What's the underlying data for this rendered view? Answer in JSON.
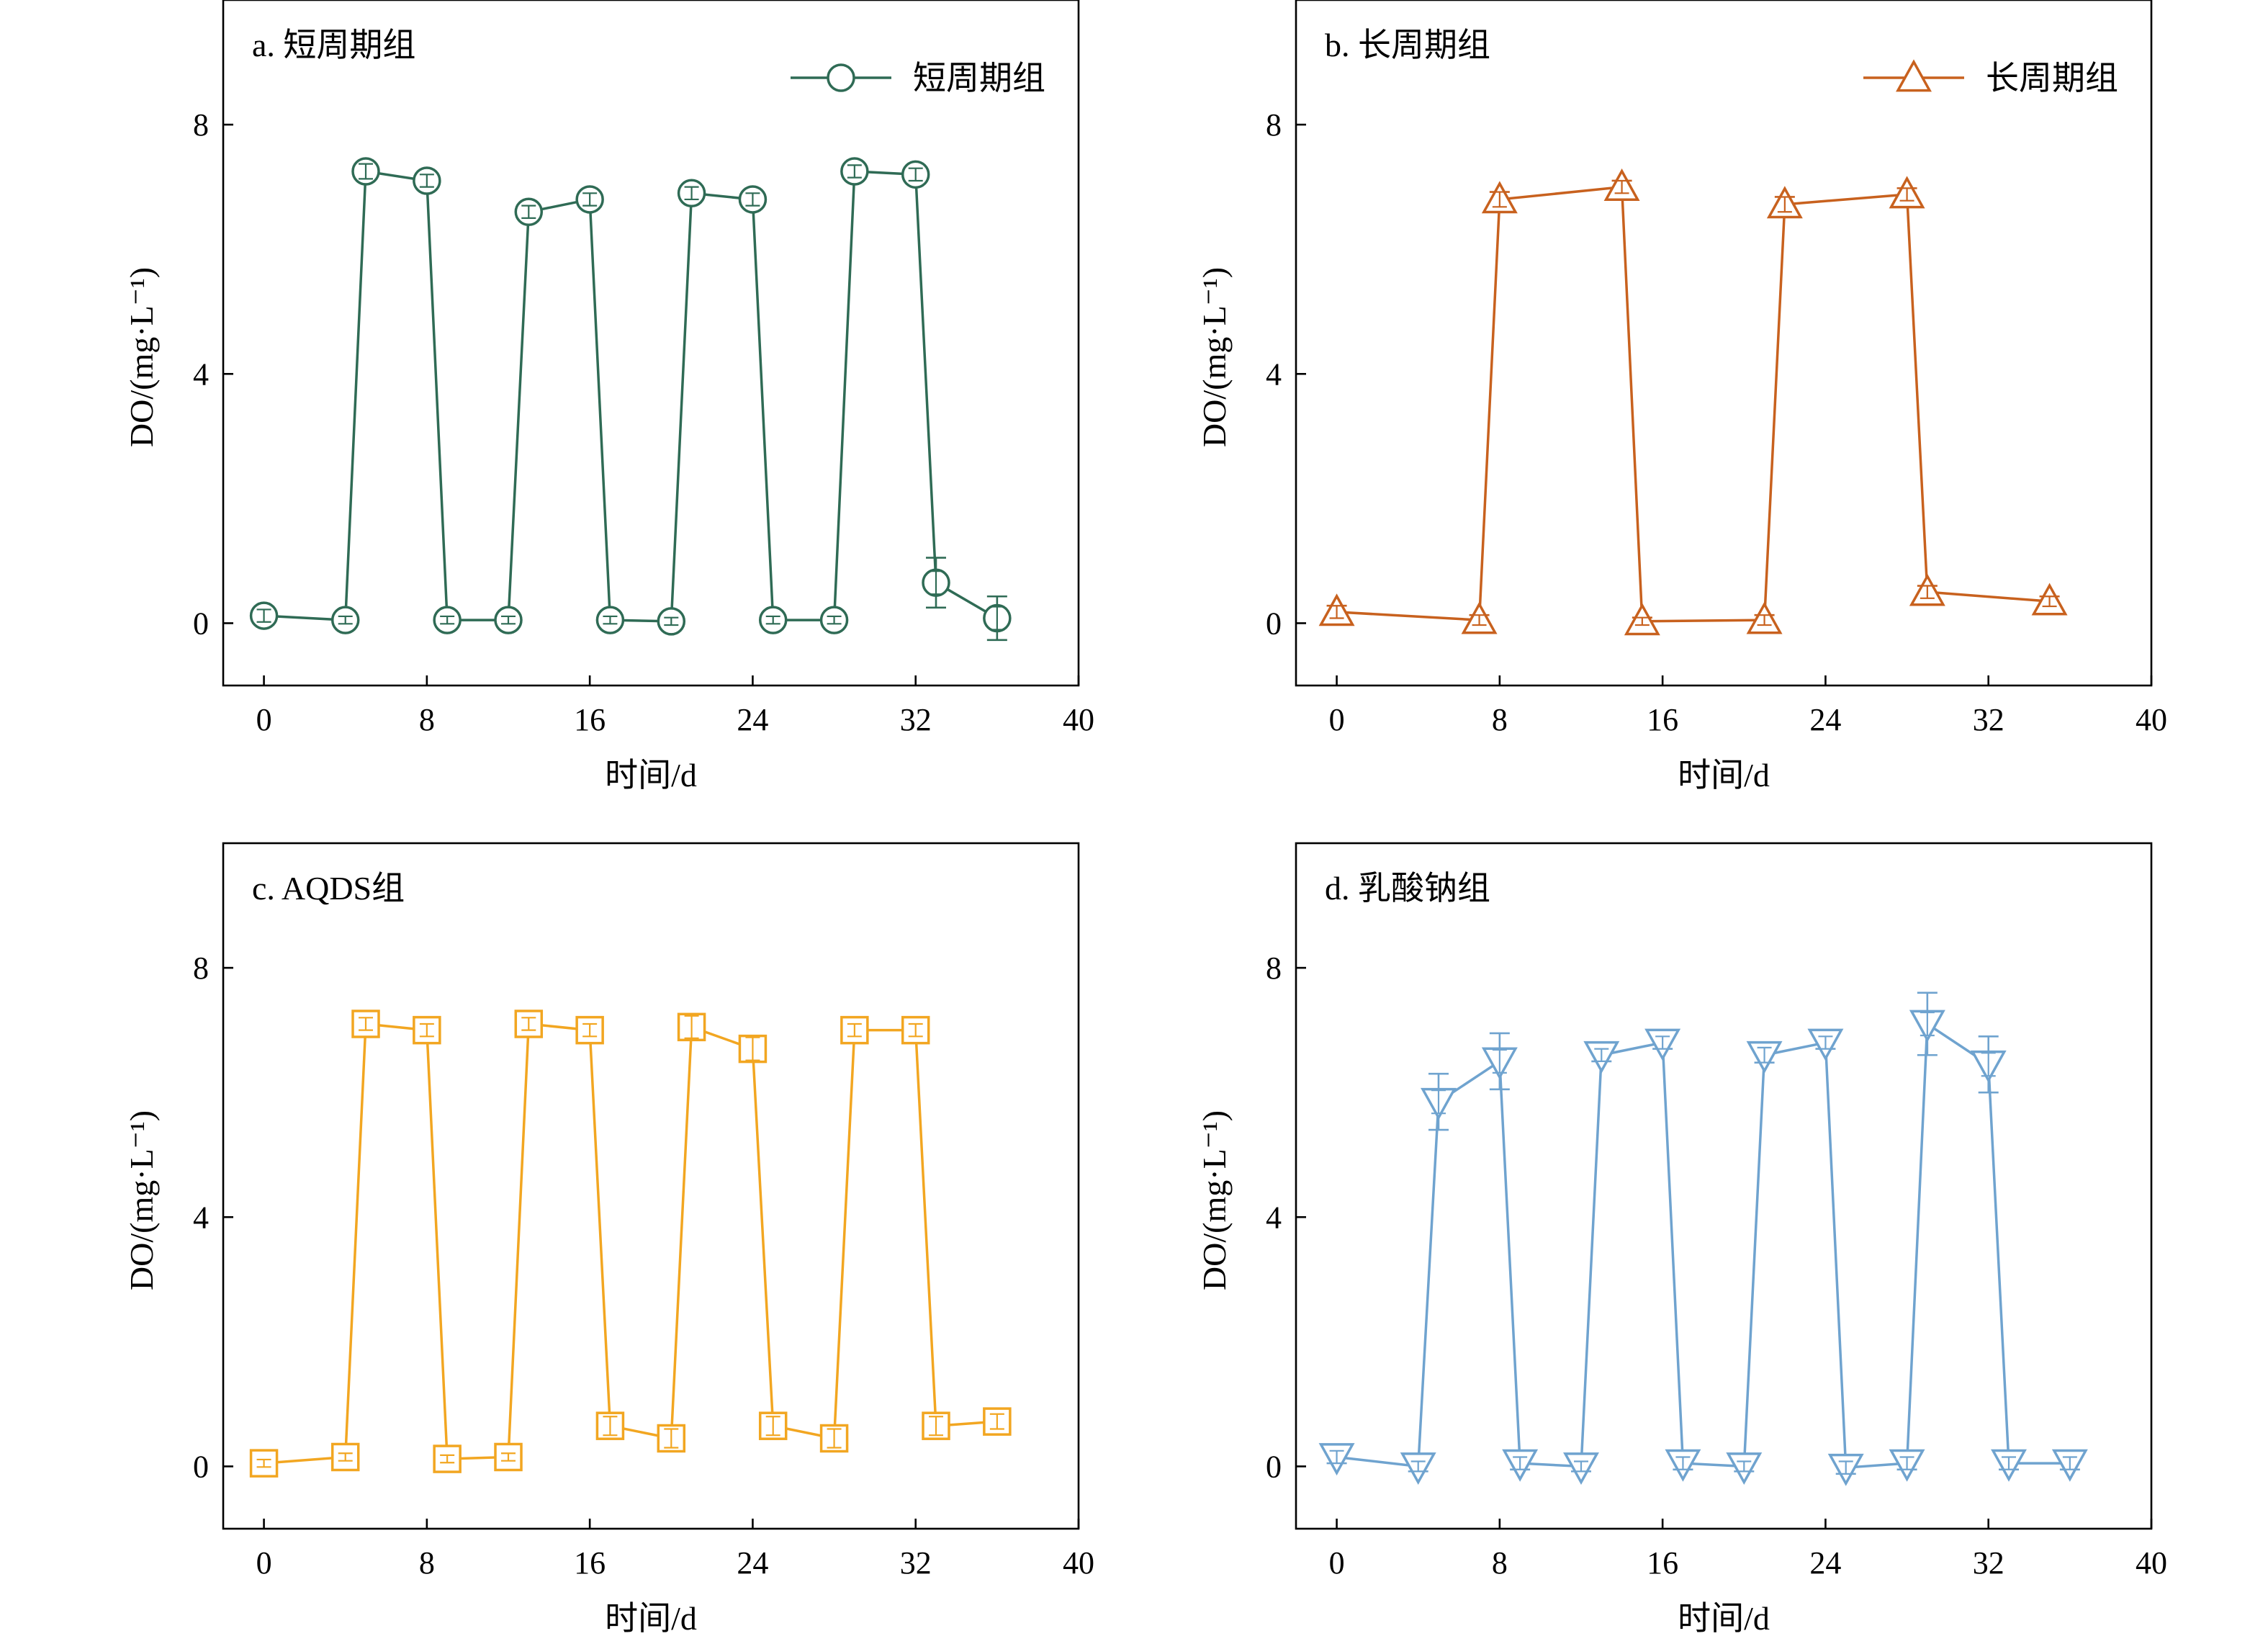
{
  "chart_data": [
    {
      "type": "line",
      "panel_id": "a",
      "title": "a. 短周期组",
      "xlabel": "时间/d",
      "ylabel": "DO/(mg·L⁻¹)",
      "xlim": [
        -2,
        40
      ],
      "ylim": [
        -1,
        10
      ],
      "xticks": [
        0,
        8,
        16,
        24,
        32,
        40
      ],
      "yticks": [
        0,
        4,
        8
      ],
      "grid": false,
      "legend_position": "top-right",
      "series": [
        {
          "name": "短周期组",
          "color": "#2f6b55",
          "marker": "circle",
          "x": [
            0,
            4,
            5,
            8,
            9,
            12,
            13,
            16,
            17,
            20,
            21,
            24,
            25,
            28,
            29,
            32,
            33,
            36
          ],
          "y": [
            0.12,
            0.05,
            7.25,
            7.1,
            0.05,
            0.05,
            6.6,
            6.8,
            0.05,
            0.03,
            6.9,
            6.8,
            0.05,
            0.05,
            7.25,
            7.2,
            0.65,
            0.08
          ],
          "err": [
            0.1,
            0.06,
            0.12,
            0.1,
            0.06,
            0.06,
            0.1,
            0.1,
            0.06,
            0.06,
            0.1,
            0.1,
            0.06,
            0.06,
            0.1,
            0.1,
            0.4,
            0.35
          ]
        }
      ]
    },
    {
      "type": "line",
      "panel_id": "b",
      "title": "b. 长周期组",
      "xlabel": "时间/d",
      "ylabel": "DO/(mg·L⁻¹)",
      "xlim": [
        -2,
        40
      ],
      "ylim": [
        -1,
        10
      ],
      "xticks": [
        0,
        8,
        16,
        24,
        32,
        40
      ],
      "yticks": [
        0,
        4,
        8
      ],
      "grid": false,
      "legend_position": "top-right",
      "series": [
        {
          "name": "长周期组",
          "color": "#c8611e",
          "marker": "triangle-up",
          "x": [
            0,
            7,
            8,
            14,
            15,
            21,
            22,
            28,
            29,
            35
          ],
          "y": [
            0.18,
            0.05,
            6.8,
            7.0,
            0.03,
            0.05,
            6.72,
            6.88,
            0.5,
            0.35
          ],
          "err": [
            0.1,
            0.08,
            0.12,
            0.1,
            0.06,
            0.08,
            0.12,
            0.1,
            0.1,
            0.08
          ]
        }
      ]
    },
    {
      "type": "line",
      "panel_id": "c",
      "title": "c. AQDS组",
      "xlabel": "时间/d",
      "ylabel": "DO/(mg·L⁻¹)",
      "xlim": [
        -2,
        40
      ],
      "ylim": [
        -1,
        10
      ],
      "xticks": [
        0,
        8,
        16,
        24,
        32,
        40
      ],
      "yticks": [
        0,
        4,
        8
      ],
      "grid": false,
      "series": [
        {
          "name": "AQDS组",
          "color": "#f2a621",
          "marker": "square",
          "x": [
            0,
            4,
            5,
            8,
            9,
            12,
            13,
            16,
            17,
            20,
            21,
            24,
            25,
            28,
            29,
            32,
            33,
            36
          ],
          "y": [
            0.05,
            0.15,
            7.1,
            7.0,
            0.12,
            0.15,
            7.1,
            7.0,
            0.65,
            0.45,
            7.05,
            6.7,
            0.65,
            0.45,
            7.0,
            7.0,
            0.65,
            0.72
          ],
          "err": [
            0.06,
            0.06,
            0.1,
            0.1,
            0.06,
            0.06,
            0.1,
            0.1,
            0.15,
            0.15,
            0.18,
            0.2,
            0.15,
            0.15,
            0.1,
            0.1,
            0.15,
            0.12
          ]
        }
      ]
    },
    {
      "type": "line",
      "panel_id": "d",
      "title": "d. 乳酸钠组",
      "xlabel": "时间/d",
      "ylabel": "DO/(mg·L⁻¹)",
      "xlim": [
        -2,
        40
      ],
      "ylim": [
        -1,
        10
      ],
      "xticks": [
        0,
        8,
        16,
        24,
        32,
        40
      ],
      "yticks": [
        0,
        4,
        8
      ],
      "grid": false,
      "series": [
        {
          "name": "乳酸钠组",
          "color": "#6fa3cf",
          "marker": "triangle-down",
          "x": [
            0,
            4,
            5,
            8,
            9,
            12,
            13,
            16,
            17,
            20,
            21,
            24,
            25,
            28,
            29,
            32,
            33,
            36
          ],
          "y": [
            0.15,
            0.0,
            5.85,
            6.5,
            0.05,
            0.0,
            6.6,
            6.8,
            0.05,
            0.0,
            6.6,
            6.8,
            -0.02,
            0.05,
            7.1,
            6.45,
            0.05,
            0.05
          ],
          "err": [
            0.1,
            0.08,
            0.45,
            0.45,
            0.1,
            0.08,
            0.1,
            0.1,
            0.1,
            0.08,
            0.12,
            0.1,
            0.1,
            0.1,
            0.5,
            0.45,
            0.1,
            0.1
          ]
        }
      ]
    }
  ]
}
